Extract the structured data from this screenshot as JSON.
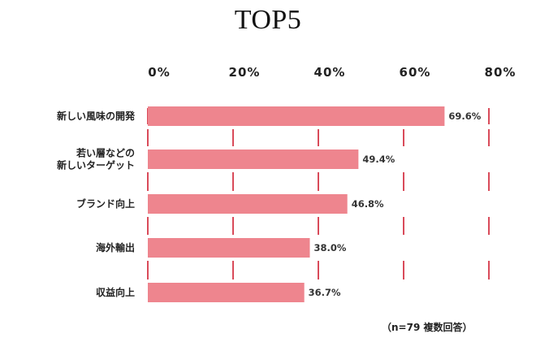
{
  "chart_data": {
    "type": "bar",
    "orientation": "horizontal",
    "title": "TOP5",
    "categories": [
      [
        "新しい風味の開発"
      ],
      [
        "若い層などの",
        "新しいターゲット"
      ],
      [
        "ブランド向上"
      ],
      [
        "海外輸出"
      ],
      [
        "収益向上"
      ]
    ],
    "values": [
      69.6,
      49.4,
      46.8,
      38.0,
      36.7
    ],
    "value_labels": [
      "69.6%",
      "49.4%",
      "46.8%",
      "38.0%",
      "36.7%"
    ],
    "xticks": [
      "0%",
      "20%",
      "40%",
      "60%",
      "80%"
    ],
    "xtick_values": [
      0,
      20,
      40,
      60,
      80
    ],
    "xlim": [
      0,
      80
    ],
    "bar_color": "#ee858e",
    "gridline_color": "#d94b5a",
    "grid": "dashed vertical",
    "note": "（n=79 複数回答）"
  }
}
